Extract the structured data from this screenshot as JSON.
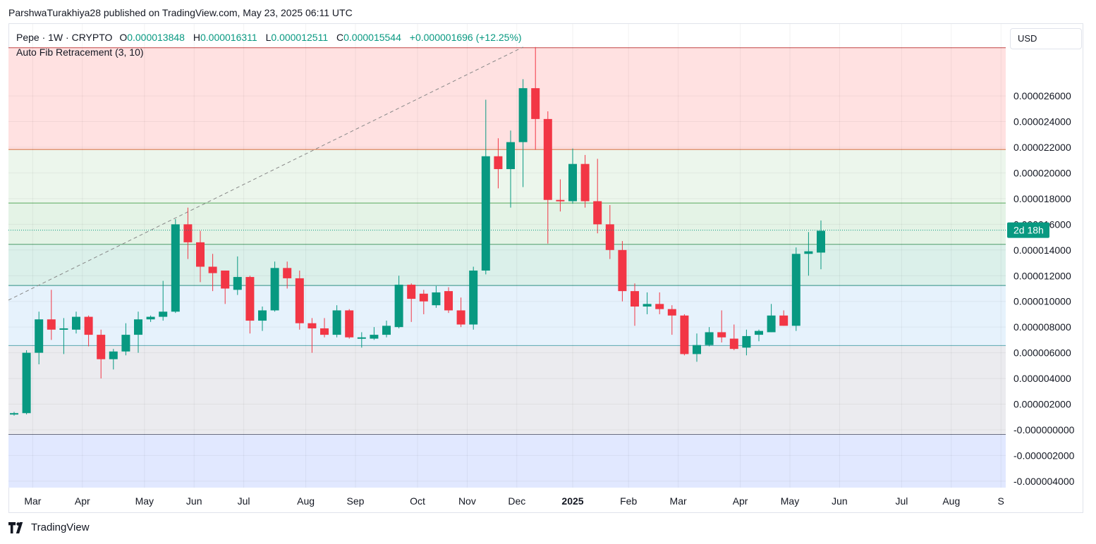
{
  "header": {
    "attribution": "ParshwaTurakhiya28 published on TradingView.com, May 23, 2025 06:11 UTC"
  },
  "legend": {
    "symbol": "Pepe · 1W · CRYPTO",
    "o_label": "O",
    "o_value": "0.000013848",
    "h_label": "H",
    "h_value": "0.000016311",
    "l_label": "L",
    "l_value": "0.000012511",
    "c_label": "C",
    "c_value": "0.000015544",
    "change": "+0.000001696 (+12.25%)",
    "indicator": "Auto Fib Retracement (3, 10)"
  },
  "currency": "USD",
  "countdown": "2d 18h",
  "footer": {
    "brand": "TradingView"
  },
  "colors": {
    "up": "#089981",
    "down": "#f23645",
    "countdown_bg": "#089981"
  },
  "chart_data": {
    "type": "candlestick",
    "ylim": [
      -4.5e-06,
      3.16e-05
    ],
    "y_ticks": [
      "0.000026000",
      "0.000024000",
      "0.000022000",
      "0.000020000",
      "0.000018000",
      "0.000016000",
      "0.000014000",
      "0.000012000",
      "0.000010000",
      "0.000008000",
      "0.000006000",
      "0.000004000",
      "0.000002000",
      "-0.000000000",
      "-0.000002000",
      "-0.000004000"
    ],
    "y_tick_values": [
      2.6e-05,
      2.4e-05,
      2.2e-05,
      2e-05,
      1.8e-05,
      1.6e-05,
      1.4e-05,
      1.2e-05,
      1e-05,
      8e-06,
      6e-06,
      4e-06,
      2e-06,
      0.0,
      -2e-06,
      -4e-06
    ],
    "x_ticks": [
      {
        "label": "Mar",
        "index": 1.5
      },
      {
        "label": "Apr",
        "index": 5.5
      },
      {
        "label": "May",
        "index": 10.5
      },
      {
        "label": "Jun",
        "index": 14.5
      },
      {
        "label": "Jul",
        "index": 18.5
      },
      {
        "label": "Aug",
        "index": 23.5
      },
      {
        "label": "Sep",
        "index": 27.5
      },
      {
        "label": "Oct",
        "index": 32.5
      },
      {
        "label": "Nov",
        "index": 36.5
      },
      {
        "label": "Dec",
        "index": 40.5
      },
      {
        "label": "2025",
        "index": 45,
        "bold": true
      },
      {
        "label": "Feb",
        "index": 49.5
      },
      {
        "label": "Mar",
        "index": 53.5
      },
      {
        "label": "Apr",
        "index": 58.5
      },
      {
        "label": "May",
        "index": 62.5
      },
      {
        "label": "Jun",
        "index": 66.5
      },
      {
        "label": "Jul",
        "index": 71.5
      },
      {
        "label": "Aug",
        "index": 75.5
      },
      {
        "label": "S",
        "index": 79.5
      }
    ],
    "fib_levels": [
      {
        "value": 2.975e-05,
        "fill": "#ffe1e1",
        "line": "#c04444"
      },
      {
        "value": 2.183e-05,
        "fill": "#ecf6ec",
        "line": "#d66a3a"
      },
      {
        "value": 1.766e-05,
        "fill": "#e4f3e6",
        "line": "#59a85c"
      },
      {
        "value": 1.444e-05,
        "fill": "#dbf0ea",
        "line": "#4f9c6a"
      },
      {
        "value": 1.124e-05,
        "fill": "#e6f2fc",
        "line": "#2f8f84"
      },
      {
        "value": 6.56e-06,
        "fill": "#ebebef",
        "line": "#5aa7b0"
      },
      {
        "value": -3.6e-07,
        "fill": "#e1e8ff",
        "line": "#6b6f80"
      }
    ],
    "trend_line": {
      "from_index": 0,
      "from_value": 1.01e-05,
      "to_index": 41,
      "to_value": 2.98e-05
    },
    "last_price": 1.5544e-05,
    "candles": [
      {
        "o": 1.2e-06,
        "h": 1.4e-06,
        "l": 1.1e-06,
        "c": 1.3e-06
      },
      {
        "o": 1.3e-06,
        "h": 6.2e-06,
        "l": 1.2e-06,
        "c": 6e-06
      },
      {
        "o": 6e-06,
        "h": 9.2e-06,
        "l": 5.1e-06,
        "c": 8.6e-06
      },
      {
        "o": 8.6e-06,
        "h": 1.09e-05,
        "l": 7e-06,
        "c": 7.8e-06
      },
      {
        "o": 7.8e-06,
        "h": 8.7e-06,
        "l": 5.9e-06,
        "c": 7.9e-06
      },
      {
        "o": 7.8e-06,
        "h": 9.2e-06,
        "l": 7.5e-06,
        "c": 8.8e-06
      },
      {
        "o": 8.8e-06,
        "h": 8.9e-06,
        "l": 6.5e-06,
        "c": 7.4e-06
      },
      {
        "o": 7.4e-06,
        "h": 7.8e-06,
        "l": 4e-06,
        "c": 5.5e-06
      },
      {
        "o": 5.5e-06,
        "h": 6.3e-06,
        "l": 4.7e-06,
        "c": 6.1e-06
      },
      {
        "o": 6.1e-06,
        "h": 8.3e-06,
        "l": 5.8e-06,
        "c": 7.4e-06
      },
      {
        "o": 7.4e-06,
        "h": 9.2e-06,
        "l": 6e-06,
        "c": 8.6e-06
      },
      {
        "o": 8.6e-06,
        "h": 8.9e-06,
        "l": 8.4e-06,
        "c": 8.8e-06
      },
      {
        "o": 8.8e-06,
        "h": 1.16e-05,
        "l": 8.5e-06,
        "c": 9.2e-06
      },
      {
        "o": 9.2e-06,
        "h": 1.64e-05,
        "l": 9.1e-06,
        "c": 1.6e-05
      },
      {
        "o": 1.6e-05,
        "h": 1.73e-05,
        "l": 1.33e-05,
        "c": 1.46e-05
      },
      {
        "o": 1.46e-05,
        "h": 1.55e-05,
        "l": 1.15e-05,
        "c": 1.27e-05
      },
      {
        "o": 1.27e-05,
        "h": 1.37e-05,
        "l": 1.08e-05,
        "c": 1.22e-05
      },
      {
        "o": 1.24e-05,
        "h": 1.24e-05,
        "l": 9.8e-06,
        "c": 1.1e-05
      },
      {
        "o": 1.09e-05,
        "h": 1.35e-05,
        "l": 1.05e-05,
        "c": 1.19e-05
      },
      {
        "o": 1.19e-05,
        "h": 1.2e-05,
        "l": 7.5e-06,
        "c": 8.5e-06
      },
      {
        "o": 8.5e-06,
        "h": 9.6e-06,
        "l": 7.7e-06,
        "c": 9.3e-06
      },
      {
        "o": 9.3e-06,
        "h": 1.31e-05,
        "l": 9.2e-06,
        "c": 1.26e-05
      },
      {
        "o": 1.26e-05,
        "h": 1.31e-05,
        "l": 1.1e-05,
        "c": 1.18e-05
      },
      {
        "o": 1.18e-05,
        "h": 1.24e-05,
        "l": 7.8e-06,
        "c": 8.3e-06
      },
      {
        "o": 8.3e-06,
        "h": 8.7e-06,
        "l": 6e-06,
        "c": 7.9e-06
      },
      {
        "o": 7.9e-06,
        "h": 8.7e-06,
        "l": 7.2e-06,
        "c": 7.4e-06
      },
      {
        "o": 7.4e-06,
        "h": 9.7e-06,
        "l": 7.2e-06,
        "c": 9.3e-06
      },
      {
        "o": 9.3e-06,
        "h": 9.4e-06,
        "l": 7.1e-06,
        "c": 7.2e-06
      },
      {
        "o": 7.2e-06,
        "h": 7.6e-06,
        "l": 6.4e-06,
        "c": 7.2e-06
      },
      {
        "o": 7.1e-06,
        "h": 8e-06,
        "l": 7e-06,
        "c": 7.4e-06
      },
      {
        "o": 7.4e-06,
        "h": 8.5e-06,
        "l": 7.2e-06,
        "c": 8.1e-06
      },
      {
        "o": 8e-06,
        "h": 1.2e-05,
        "l": 7.9e-06,
        "c": 1.13e-05
      },
      {
        "o": 1.13e-05,
        "h": 1.14e-05,
        "l": 8.4e-06,
        "c": 1.02e-05
      },
      {
        "o": 1.06e-05,
        "h": 1.09e-05,
        "l": 9e-06,
        "c": 1e-05
      },
      {
        "o": 9.7e-06,
        "h": 1.12e-05,
        "l": 9.5e-06,
        "c": 1.07e-05
      },
      {
        "o": 1.08e-05,
        "h": 1.11e-05,
        "l": 9.1e-06,
        "c": 9.3e-06
      },
      {
        "o": 9.3e-06,
        "h": 1.03e-05,
        "l": 8e-06,
        "c": 8.2e-06
      },
      {
        "o": 8.2e-06,
        "h": 1.27e-05,
        "l": 7.8e-06,
        "c": 1.24e-05
      },
      {
        "o": 1.24e-05,
        "h": 2.57e-05,
        "l": 1.21e-05,
        "c": 2.13e-05
      },
      {
        "o": 2.13e-05,
        "h": 2.27e-05,
        "l": 1.88e-05,
        "c": 2.03e-05
      },
      {
        "o": 2.03e-05,
        "h": 2.33e-05,
        "l": 1.73e-05,
        "c": 2.24e-05
      },
      {
        "o": 2.24e-05,
        "h": 2.73e-05,
        "l": 1.89e-05,
        "c": 2.66e-05
      },
      {
        "o": 2.66e-05,
        "h": 2.98e-05,
        "l": 2.18e-05,
        "c": 2.42e-05
      },
      {
        "o": 2.42e-05,
        "h": 2.48e-05,
        "l": 1.45e-05,
        "c": 1.79e-05
      },
      {
        "o": 1.79e-05,
        "h": 1.95e-05,
        "l": 1.7e-05,
        "c": 1.78e-05
      },
      {
        "o": 1.78e-05,
        "h": 2.19e-05,
        "l": 1.76e-05,
        "c": 2.07e-05
      },
      {
        "o": 2.07e-05,
        "h": 2.14e-05,
        "l": 1.73e-05,
        "c": 1.78e-05
      },
      {
        "o": 1.78e-05,
        "h": 2.11e-05,
        "l": 1.53e-05,
        "c": 1.6e-05
      },
      {
        "o": 1.6e-05,
        "h": 1.75e-05,
        "l": 1.33e-05,
        "c": 1.4e-05
      },
      {
        "o": 1.4e-05,
        "h": 1.47e-05,
        "l": 1e-05,
        "c": 1.08e-05
      },
      {
        "o": 1.08e-05,
        "h": 1.14e-05,
        "l": 8.1e-06,
        "c": 9.6e-06
      },
      {
        "o": 9.6e-06,
        "h": 1.07e-05,
        "l": 9e-06,
        "c": 9.8e-06
      },
      {
        "o": 9.8e-06,
        "h": 1.07e-05,
        "l": 9e-06,
        "c": 9.4e-06
      },
      {
        "o": 9.4e-06,
        "h": 9.7e-06,
        "l": 7.4e-06,
        "c": 8.9e-06
      },
      {
        "o": 8.9e-06,
        "h": 9e-06,
        "l": 5.8e-06,
        "c": 5.9e-06
      },
      {
        "o": 5.9e-06,
        "h": 7.5e-06,
        "l": 5.3e-06,
        "c": 6.6e-06
      },
      {
        "o": 6.6e-06,
        "h": 8e-06,
        "l": 6.5e-06,
        "c": 7.6e-06
      },
      {
        "o": 7.6e-06,
        "h": 9.3e-06,
        "l": 6.8e-06,
        "c": 7.2e-06
      },
      {
        "o": 7.1e-06,
        "h": 8.2e-06,
        "l": 6.2e-06,
        "c": 6.3e-06
      },
      {
        "o": 6.4e-06,
        "h": 7.8e-06,
        "l": 5.8e-06,
        "c": 7.3e-06
      },
      {
        "o": 7.4e-06,
        "h": 7.8e-06,
        "l": 6.9e-06,
        "c": 7.7e-06
      },
      {
        "o": 7.6e-06,
        "h": 9.8e-06,
        "l": 7.6e-06,
        "c": 8.9e-06
      },
      {
        "o": 8.9e-06,
        "h": 9.3e-06,
        "l": 8.1e-06,
        "c": 8.1e-06
      },
      {
        "o": 8.1e-06,
        "h": 1.42e-05,
        "l": 7.7e-06,
        "c": 1.37e-05
      },
      {
        "o": 1.37e-05,
        "h": 1.54e-05,
        "l": 1.2e-05,
        "c": 1.39e-05
      },
      {
        "o": 1.38e-05,
        "h": 1.63e-05,
        "l": 1.25e-05,
        "c": 1.55e-05
      }
    ]
  }
}
